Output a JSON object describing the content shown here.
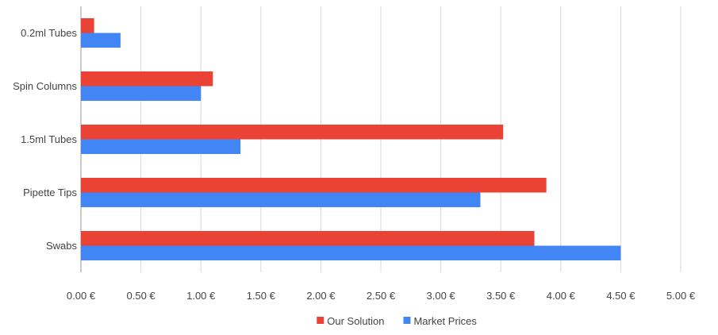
{
  "chart_data": {
    "type": "bar",
    "orientation": "horizontal",
    "categories": [
      "0.2ml Tubes",
      "Spin Columns",
      "1.5ml Tubes",
      "Pipette Tips",
      "Swabs"
    ],
    "series": [
      {
        "name": "Our Solution",
        "color": "#EA4335",
        "values": [
          0.11,
          1.1,
          3.52,
          3.88,
          3.78
        ]
      },
      {
        "name": "Market Prices",
        "color": "#4285F4",
        "values": [
          0.33,
          1.0,
          1.33,
          3.33,
          4.5
        ]
      }
    ],
    "x_ticks": [
      "0.00 €",
      "0.50 €",
      "1.00 €",
      "1.50 €",
      "2.00 €",
      "2.50 €",
      "3.00 €",
      "3.50 €",
      "4.00 €",
      "4.50 €",
      "5.00 €"
    ],
    "xlim": [
      0,
      5
    ],
    "grid": true,
    "legend_position": "bottom",
    "title": "",
    "xlabel": "",
    "ylabel": ""
  }
}
